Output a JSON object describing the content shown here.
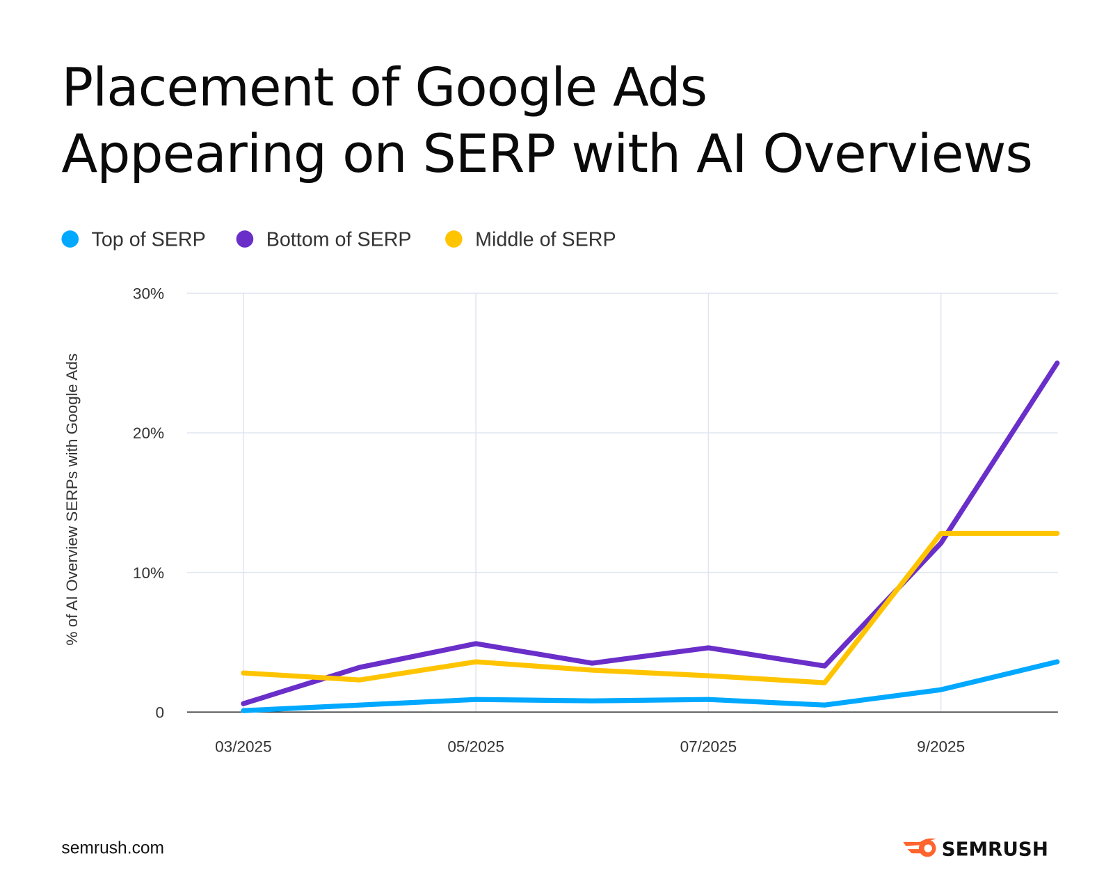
{
  "chart_data": {
    "type": "line",
    "title": "Placement of Google Ads Appearing on SERP with AI Overviews",
    "title_lines": [
      "Placement of Google Ads",
      "Appearing on SERP with AI Overviews"
    ],
    "xlabel": "",
    "ylabel": "% of AI Overview SERPs with Google Ads",
    "x": [
      "03/2025",
      "04/2025",
      "05/2025",
      "06/2025",
      "07/2025",
      "08/2025",
      "09/2025",
      "10/2025"
    ],
    "x_tick_labels": [
      {
        "month": "03/2025",
        "label": "03/2025"
      },
      {
        "month": "05/2025",
        "label": "05/2025"
      },
      {
        "month": "07/2025",
        "label": "07/2025"
      },
      {
        "month": "09/2025",
        "label": "9/2025"
      }
    ],
    "y_ticks": [
      0,
      10,
      20,
      30
    ],
    "y_tick_labels": [
      "0",
      "10%",
      "20%",
      "30%"
    ],
    "ylim": [
      0,
      30
    ],
    "grid": true,
    "legend_placement": "top-left",
    "series": [
      {
        "name": "Top of SERP",
        "color": "#00a8ff",
        "values": [
          0.1,
          0.5,
          0.9,
          0.8,
          0.9,
          0.5,
          1.6,
          3.6
        ]
      },
      {
        "name": "Bottom of SERP",
        "color": "#6a2ec9",
        "values": [
          0.6,
          3.2,
          4.9,
          3.5,
          4.6,
          3.3,
          12.1,
          25.0
        ]
      },
      {
        "name": "Middle of SERP",
        "color": "#ffc400",
        "values": [
          2.8,
          2.3,
          3.6,
          3.0,
          2.6,
          2.1,
          12.8,
          12.8
        ]
      }
    ]
  },
  "footer": {
    "source": "semrush.com",
    "brand": "SEMRUSH",
    "brand_color": "#ff642d"
  }
}
